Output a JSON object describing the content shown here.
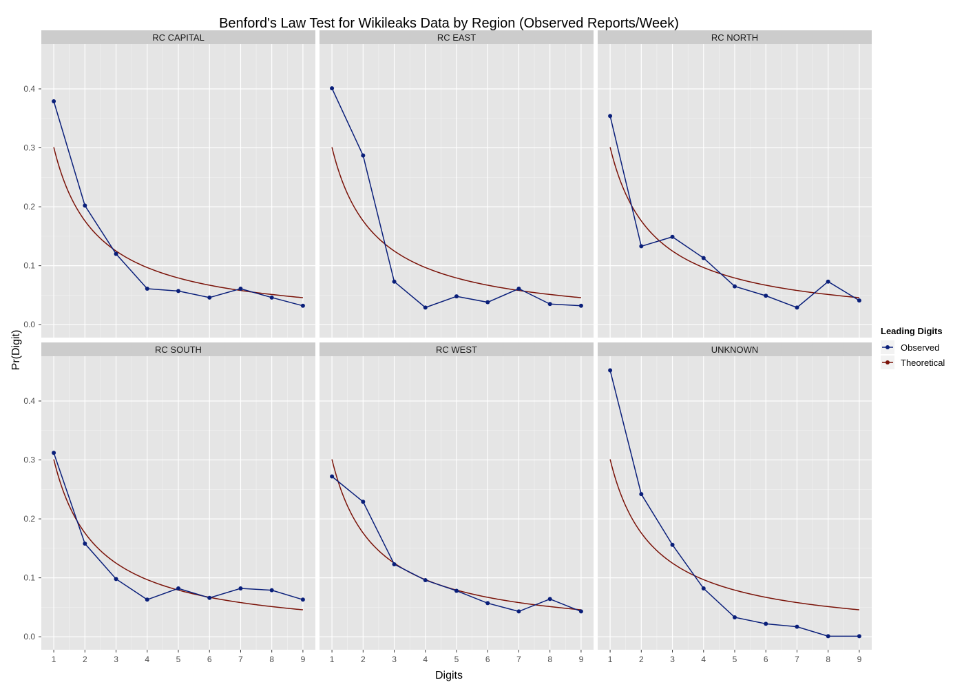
{
  "chart_data": {
    "type": "line",
    "title": "Benford's Law Test for Wikileaks Data by Region (Observed Reports/Week)",
    "xlabel": "Digits",
    "ylabel": "Pr(Digit)",
    "x": [
      1,
      2,
      3,
      4,
      5,
      6,
      7,
      8,
      9
    ],
    "x_tick_labels": [
      "1",
      "2",
      "3",
      "4",
      "5",
      "6",
      "7",
      "8",
      "9"
    ],
    "xlim": [
      0.6,
      9.4
    ],
    "ylim": [
      -0.022,
      0.476
    ],
    "y_ticks": [
      0.0,
      0.1,
      0.2,
      0.3,
      0.4
    ],
    "y_tick_labels": [
      "0.0",
      "0.1",
      "0.2",
      "0.3",
      "0.4"
    ],
    "grid": true,
    "legend": {
      "title": "Leading Digits",
      "position": "right",
      "entries": [
        "Observed",
        "Theoretical"
      ]
    },
    "colors": {
      "observed": "#0a1f7a",
      "theoretical": "#7a1208"
    },
    "theoretical_curve": "log10(1 + 1/d)",
    "theoretical_values": [
      0.301,
      0.176,
      0.125,
      0.097,
      0.079,
      0.067,
      0.058,
      0.051,
      0.046
    ],
    "panels": [
      {
        "label": "RC CAPITAL",
        "observed": [
          0.379,
          0.202,
          0.12,
          0.061,
          0.057,
          0.046,
          0.061,
          0.046,
          0.032
        ]
      },
      {
        "label": "RC EAST",
        "observed": [
          0.401,
          0.287,
          0.073,
          0.029,
          0.048,
          0.038,
          0.061,
          0.035,
          0.032
        ]
      },
      {
        "label": "RC NORTH",
        "observed": [
          0.354,
          0.133,
          0.149,
          0.113,
          0.065,
          0.049,
          0.029,
          0.073,
          0.041
        ]
      },
      {
        "label": "RC SOUTH",
        "observed": [
          0.312,
          0.158,
          0.098,
          0.063,
          0.082,
          0.066,
          0.082,
          0.079,
          0.063
        ]
      },
      {
        "label": "RC WEST",
        "observed": [
          0.272,
          0.229,
          0.123,
          0.096,
          0.078,
          0.057,
          0.043,
          0.064,
          0.043
        ]
      },
      {
        "label": "UNKNOWN",
        "observed": [
          0.452,
          0.242,
          0.156,
          0.082,
          0.033,
          0.022,
          0.017,
          0.001,
          0.001
        ]
      }
    ]
  }
}
